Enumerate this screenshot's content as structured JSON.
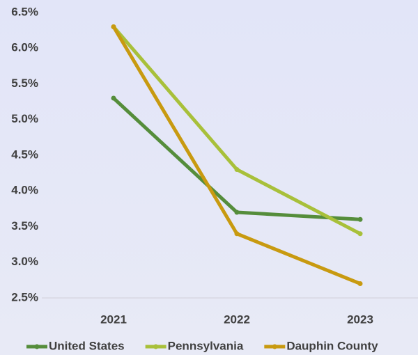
{
  "chart_data": {
    "type": "line",
    "categories": [
      "2021",
      "2022",
      "2023"
    ],
    "series": [
      {
        "name": "United States",
        "color": "#558d3b",
        "values": [
          5.3,
          3.7,
          3.6
        ]
      },
      {
        "name": "Pennsylvania",
        "color": "#a8c03a",
        "values": [
          6.3,
          4.3,
          3.4
        ]
      },
      {
        "name": "Dauphin County",
        "color": "#c89a10",
        "values": [
          6.3,
          3.4,
          2.7
        ]
      }
    ],
    "ylim": [
      2.5,
      6.5
    ],
    "yticks": [
      {
        "value": 2.5,
        "label": "2.5%"
      },
      {
        "value": 3.0,
        "label": "3.0%"
      },
      {
        "value": 3.5,
        "label": "3.5%"
      },
      {
        "value": 4.0,
        "label": "4.0%"
      },
      {
        "value": 4.5,
        "label": "4.5%"
      },
      {
        "value": 5.0,
        "label": "5.0%"
      },
      {
        "value": 5.5,
        "label": "5.5%"
      },
      {
        "value": 6.0,
        "label": "6.0%"
      },
      {
        "value": 6.5,
        "label": "6.5%"
      }
    ],
    "grid": false,
    "legend": "bottom"
  }
}
